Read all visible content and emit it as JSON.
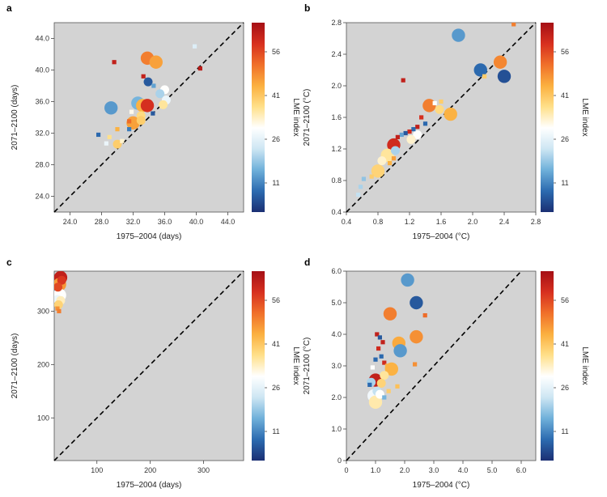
{
  "colorbar": {
    "label": "LME index",
    "ticks": [
      11,
      26,
      41,
      56
    ],
    "range": [
      1,
      66
    ],
    "stops": [
      "#1b2f73",
      "#2c6bb0",
      "#6fb0da",
      "#cde6f3",
      "#ffffff",
      "#ffe08a",
      "#fbb040",
      "#f0702a",
      "#d7301f",
      "#a50f15"
    ]
  },
  "colors": {
    "panel_bg": "#d3d3d3",
    "diagonal": "#000000"
  },
  "chart_data": [
    {
      "panel": "a",
      "type": "scatter",
      "xlabel": "1975–2004 (days)",
      "ylabel": "2071–2100 (days)",
      "xlim": [
        22,
        46
      ],
      "ylim": [
        22,
        46
      ],
      "xticks": [
        "24.0",
        "28.0",
        "32.0",
        "36.0",
        "40.0",
        "44.0"
      ],
      "yticks": [
        "24.0",
        "28.0",
        "32.0",
        "36.0",
        "40.0",
        "44.0"
      ],
      "diagonal": true,
      "points": [
        {
          "x": 33.8,
          "y": 41.5,
          "s": 3,
          "c": 50
        },
        {
          "x": 34.9,
          "y": 41.0,
          "s": 3,
          "c": 46
        },
        {
          "x": 29.6,
          "y": 41.0,
          "s": 1,
          "c": 62
        },
        {
          "x": 40.5,
          "y": 40.2,
          "s": 1,
          "c": 63
        },
        {
          "x": 39.8,
          "y": 43.0,
          "s": 1,
          "c": 25
        },
        {
          "x": 33.3,
          "y": 39.2,
          "s": 1,
          "c": 62
        },
        {
          "x": 33.9,
          "y": 38.5,
          "s": 2,
          "c": 6
        },
        {
          "x": 34.6,
          "y": 38.0,
          "s": 1,
          "c": 14
        },
        {
          "x": 36.0,
          "y": 37.5,
          "s": 2,
          "c": 30
        },
        {
          "x": 35.4,
          "y": 37.0,
          "s": 2,
          "c": 20
        },
        {
          "x": 36.2,
          "y": 36.2,
          "s": 2,
          "c": 27
        },
        {
          "x": 35.8,
          "y": 35.6,
          "s": 2,
          "c": 36
        },
        {
          "x": 29.2,
          "y": 35.2,
          "s": 3,
          "c": 13
        },
        {
          "x": 32.6,
          "y": 35.8,
          "s": 3,
          "c": 16
        },
        {
          "x": 33.2,
          "y": 35.5,
          "s": 3,
          "c": 44
        },
        {
          "x": 33.8,
          "y": 35.5,
          "s": 3,
          "c": 59
        },
        {
          "x": 31.8,
          "y": 34.7,
          "s": 1,
          "c": 31
        },
        {
          "x": 34.5,
          "y": 34.5,
          "s": 1,
          "c": 6
        },
        {
          "x": 33.0,
          "y": 34.2,
          "s": 2,
          "c": 38
        },
        {
          "x": 31.5,
          "y": 33.5,
          "s": 1,
          "c": 52
        },
        {
          "x": 32.0,
          "y": 33.3,
          "s": 3,
          "c": 46
        },
        {
          "x": 33.0,
          "y": 33.6,
          "s": 2,
          "c": 40
        },
        {
          "x": 31.5,
          "y": 32.5,
          "s": 1,
          "c": 10
        },
        {
          "x": 30.0,
          "y": 32.5,
          "s": 1,
          "c": 44
        },
        {
          "x": 27.6,
          "y": 31.8,
          "s": 1,
          "c": 8
        },
        {
          "x": 29.0,
          "y": 31.5,
          "s": 1,
          "c": 37
        },
        {
          "x": 28.6,
          "y": 30.7,
          "s": 1,
          "c": 27
        },
        {
          "x": 30.0,
          "y": 30.6,
          "s": 2,
          "c": 40
        },
        {
          "x": 30.6,
          "y": 31.0,
          "s": 1,
          "c": 33
        }
      ]
    },
    {
      "panel": "b",
      "type": "scatter",
      "xlabel": "1975–2004 (°C)",
      "ylabel": "2071–2100 (°C)",
      "xlim": [
        0.4,
        2.8
      ],
      "ylim": [
        0.4,
        2.8
      ],
      "xticks": [
        "0.4",
        "0.8",
        "1.2",
        "1.6",
        "2.0",
        "2.4",
        "2.8"
      ],
      "yticks": [
        "0.4",
        "0.8",
        "1.2",
        "1.6",
        "2.0",
        "2.4",
        "2.8"
      ],
      "diagonal": true,
      "points": [
        {
          "x": 2.52,
          "y": 2.78,
          "s": 1,
          "c": 50
        },
        {
          "x": 1.82,
          "y": 2.64,
          "s": 3,
          "c": 13
        },
        {
          "x": 2.35,
          "y": 2.3,
          "s": 3,
          "c": 49
        },
        {
          "x": 2.1,
          "y": 2.2,
          "s": 3,
          "c": 8
        },
        {
          "x": 2.4,
          "y": 2.12,
          "s": 3,
          "c": 5
        },
        {
          "x": 2.15,
          "y": 2.12,
          "s": 1,
          "c": 40
        },
        {
          "x": 1.12,
          "y": 2.07,
          "s": 1,
          "c": 62
        },
        {
          "x": 1.45,
          "y": 1.75,
          "s": 3,
          "c": 50
        },
        {
          "x": 1.72,
          "y": 1.64,
          "s": 3,
          "c": 44
        },
        {
          "x": 1.58,
          "y": 1.7,
          "s": 2,
          "c": 38
        },
        {
          "x": 1.52,
          "y": 1.78,
          "s": 1,
          "c": 30
        },
        {
          "x": 1.6,
          "y": 1.8,
          "s": 1,
          "c": 40
        },
        {
          "x": 1.35,
          "y": 1.6,
          "s": 1,
          "c": 59
        },
        {
          "x": 1.4,
          "y": 1.52,
          "s": 1,
          "c": 8
        },
        {
          "x": 1.3,
          "y": 1.48,
          "s": 1,
          "c": 62
        },
        {
          "x": 1.25,
          "y": 1.45,
          "s": 1,
          "c": 8
        },
        {
          "x": 1.2,
          "y": 1.42,
          "s": 1,
          "c": 60
        },
        {
          "x": 1.15,
          "y": 1.4,
          "s": 1,
          "c": 6
        },
        {
          "x": 1.1,
          "y": 1.38,
          "s": 1,
          "c": 14
        },
        {
          "x": 1.05,
          "y": 1.35,
          "s": 1,
          "c": 62
        },
        {
          "x": 1.3,
          "y": 1.38,
          "s": 2,
          "c": 30
        },
        {
          "x": 1.22,
          "y": 1.32,
          "s": 2,
          "c": 33
        },
        {
          "x": 1.0,
          "y": 1.25,
          "s": 3,
          "c": 60
        },
        {
          "x": 1.02,
          "y": 1.18,
          "s": 2,
          "c": 20
        },
        {
          "x": 0.92,
          "y": 1.12,
          "s": 3,
          "c": 36
        },
        {
          "x": 0.85,
          "y": 1.05,
          "s": 2,
          "c": 33
        },
        {
          "x": 1.0,
          "y": 1.08,
          "s": 1,
          "c": 46
        },
        {
          "x": 0.95,
          "y": 1.02,
          "s": 1,
          "c": 44
        },
        {
          "x": 0.8,
          "y": 0.92,
          "s": 3,
          "c": 39
        },
        {
          "x": 0.72,
          "y": 0.85,
          "s": 1,
          "c": 40
        },
        {
          "x": 0.62,
          "y": 0.82,
          "s": 1,
          "c": 18
        },
        {
          "x": 0.58,
          "y": 0.72,
          "s": 1,
          "c": 20
        },
        {
          "x": 0.55,
          "y": 0.62,
          "s": 1,
          "c": 22
        }
      ]
    },
    {
      "panel": "c",
      "type": "scatter",
      "xlabel": "1975–2004 (days)",
      "ylabel": "2071–2100 (days)",
      "xlim": [
        20,
        375
      ],
      "ylim": [
        20,
        375
      ],
      "xticks": [
        "100",
        "200",
        "300"
      ],
      "yticks": [
        "100",
        "200",
        "300"
      ],
      "diagonal": true,
      "points": [
        {
          "x": 32,
          "y": 363,
          "s": 3,
          "c": 62
        },
        {
          "x": 34,
          "y": 358,
          "s": 2,
          "c": 58
        },
        {
          "x": 30,
          "y": 350,
          "s": 3,
          "c": 47
        },
        {
          "x": 27,
          "y": 345,
          "s": 2,
          "c": 56
        },
        {
          "x": 24,
          "y": 335,
          "s": 3,
          "c": 13
        },
        {
          "x": 30,
          "y": 330,
          "s": 3,
          "c": 30
        },
        {
          "x": 26,
          "y": 322,
          "s": 2,
          "c": 27
        },
        {
          "x": 32,
          "y": 320,
          "s": 2,
          "c": 34
        },
        {
          "x": 28,
          "y": 312,
          "s": 2,
          "c": 39
        },
        {
          "x": 26,
          "y": 305,
          "s": 1,
          "c": 48
        },
        {
          "x": 29,
          "y": 300,
          "s": 1,
          "c": 50
        }
      ]
    },
    {
      "panel": "d",
      "type": "scatter",
      "xlabel": "1975–2004 (°C)",
      "ylabel": "2071–2100 (°C)",
      "xlim": [
        0,
        6.5
      ],
      "ylim": [
        0,
        6.0
      ],
      "xticks": [
        "0",
        "1.0",
        "2.0",
        "3.0",
        "4.0",
        "5.0",
        "6.0"
      ],
      "yticks": [
        "0",
        "1.0",
        "2.0",
        "3.0",
        "4.0",
        "5.0",
        "6.0"
      ],
      "diagonal": true,
      "points": [
        {
          "x": 2.1,
          "y": 5.72,
          "s": 3,
          "c": 13
        },
        {
          "x": 2.4,
          "y": 5.0,
          "s": 3,
          "c": 6
        },
        {
          "x": 1.5,
          "y": 4.65,
          "s": 3,
          "c": 50
        },
        {
          "x": 2.7,
          "y": 4.6,
          "s": 1,
          "c": 52
        },
        {
          "x": 2.4,
          "y": 3.92,
          "s": 3,
          "c": 48
        },
        {
          "x": 1.8,
          "y": 3.72,
          "s": 3,
          "c": 45
        },
        {
          "x": 1.85,
          "y": 3.48,
          "s": 3,
          "c": 13
        },
        {
          "x": 1.05,
          "y": 4.0,
          "s": 1,
          "c": 62
        },
        {
          "x": 1.15,
          "y": 3.9,
          "s": 1,
          "c": 6
        },
        {
          "x": 1.25,
          "y": 3.75,
          "s": 1,
          "c": 62
        },
        {
          "x": 1.1,
          "y": 3.55,
          "s": 1,
          "c": 60
        },
        {
          "x": 1.2,
          "y": 3.3,
          "s": 1,
          "c": 8
        },
        {
          "x": 1.0,
          "y": 3.2,
          "s": 1,
          "c": 8
        },
        {
          "x": 1.3,
          "y": 3.1,
          "s": 1,
          "c": 60
        },
        {
          "x": 1.4,
          "y": 3.0,
          "s": 1,
          "c": 44
        },
        {
          "x": 2.35,
          "y": 3.05,
          "s": 1,
          "c": 48
        },
        {
          "x": 1.55,
          "y": 2.9,
          "s": 3,
          "c": 44
        },
        {
          "x": 0.9,
          "y": 2.95,
          "s": 1,
          "c": 30
        },
        {
          "x": 1.3,
          "y": 2.7,
          "s": 2,
          "c": 36
        },
        {
          "x": 1.0,
          "y": 2.55,
          "s": 3,
          "c": 62
        },
        {
          "x": 0.85,
          "y": 2.48,
          "s": 2,
          "c": 20
        },
        {
          "x": 0.8,
          "y": 2.4,
          "s": 1,
          "c": 8
        },
        {
          "x": 1.2,
          "y": 2.45,
          "s": 2,
          "c": 39
        },
        {
          "x": 1.75,
          "y": 2.35,
          "s": 1,
          "c": 42
        },
        {
          "x": 1.05,
          "y": 2.2,
          "s": 2,
          "c": 22
        },
        {
          "x": 1.15,
          "y": 2.1,
          "s": 2,
          "c": 30
        },
        {
          "x": 0.95,
          "y": 2.05,
          "s": 3,
          "c": 28
        },
        {
          "x": 1.3,
          "y": 2.0,
          "s": 1,
          "c": 16
        },
        {
          "x": 1.0,
          "y": 1.85,
          "s": 3,
          "c": 35
        },
        {
          "x": 1.45,
          "y": 2.2,
          "s": 1,
          "c": 40
        }
      ]
    }
  ]
}
